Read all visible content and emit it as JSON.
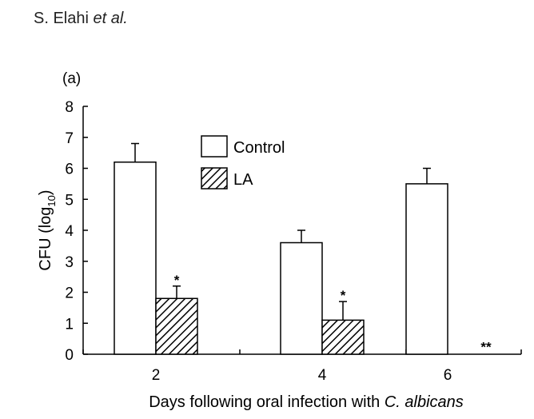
{
  "header": {
    "authors_main": "S. Elahi ",
    "authors_etal": "et al."
  },
  "chart_data": {
    "type": "bar",
    "panel_label": "(a)",
    "title": "",
    "xlabel_prefix": "Days following oral infection with ",
    "xlabel_italic": "C. albicans",
    "ylabel_main": "CFU (log",
    "ylabel_sub": "10",
    "ylabel_close": ")",
    "ylim": [
      0,
      8
    ],
    "yticks": [
      0,
      1,
      2,
      3,
      4,
      5,
      6,
      7,
      8
    ],
    "categories": [
      "2",
      "4",
      "6"
    ],
    "series": [
      {
        "name": "Control",
        "values": [
          6.2,
          3.6,
          5.5
        ],
        "errors": [
          0.6,
          0.4,
          0.5
        ],
        "fill": "white",
        "color": "#000000"
      },
      {
        "name": "LA",
        "values": [
          1.8,
          1.1,
          0
        ],
        "errors": [
          0.4,
          0.6,
          0
        ],
        "fill": "hatched",
        "color": "#000000"
      }
    ],
    "significance": [
      {
        "category": "2",
        "series": "LA",
        "label": "*"
      },
      {
        "category": "4",
        "series": "LA",
        "label": "*"
      },
      {
        "category": "6",
        "series": "LA",
        "label": "**"
      }
    ],
    "legend_placement": "top-center",
    "grid": false
  }
}
